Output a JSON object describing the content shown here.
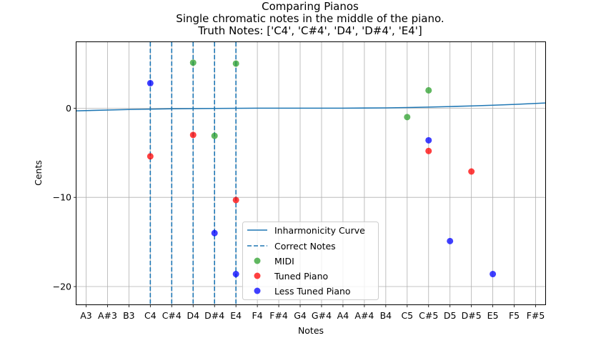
{
  "chart_data": {
    "type": "scatter",
    "title_lines": [
      "Comparing Pianos",
      "Single chromatic notes in the middle of the piano.",
      "Truth Notes: ['C4', 'C#4', 'D4', 'D#4', 'E4']"
    ],
    "xlabel": "Notes",
    "ylabel": "Cents",
    "categories": [
      "A3",
      "A#3",
      "B3",
      "C4",
      "C#4",
      "D4",
      "D#4",
      "E4",
      "F4",
      "F#4",
      "G4",
      "G#4",
      "A4",
      "A#4",
      "B4",
      "C5",
      "C#5",
      "D5",
      "D#5",
      "E5",
      "F5",
      "F#5"
    ],
    "x_range": [
      -0.45,
      21.45
    ],
    "ylim": [
      -22,
      7.4
    ],
    "y_ticks": [
      -20,
      -10,
      0
    ],
    "y_tick_labels": [
      "−20",
      "−10",
      "0"
    ],
    "grid": true,
    "legend_position": "lower-center",
    "correct_notes": [
      "C4",
      "C#4",
      "D4",
      "D#4",
      "E4"
    ],
    "inharmonicity_curve": {
      "name": "Inharmonicity Curve",
      "color": "#1f77b4",
      "x": [
        -0.45,
        2,
        4,
        6,
        8,
        10,
        12,
        14,
        15,
        16,
        17,
        18,
        19,
        20,
        21.45
      ],
      "y": [
        -0.3,
        -0.15,
        -0.07,
        -0.03,
        0.0,
        0.0,
        0.0,
        0.03,
        0.07,
        0.12,
        0.18,
        0.25,
        0.33,
        0.42,
        0.58
      ]
    },
    "series": [
      {
        "name": "MIDI",
        "color": "#2ca02c",
        "points": [
          {
            "note": "D4",
            "cents": 5.1
          },
          {
            "note": "D#4",
            "cents": -3.1
          },
          {
            "note": "E4",
            "cents": 5.0
          },
          {
            "note": "C5",
            "cents": -1.0
          },
          {
            "note": "C#5",
            "cents": 2.0
          }
        ]
      },
      {
        "name": "Tuned Piano",
        "color": "#ff0000",
        "points": [
          {
            "note": "C4",
            "cents": -5.4
          },
          {
            "note": "D4",
            "cents": -3.0
          },
          {
            "note": "E4",
            "cents": -10.3
          },
          {
            "note": "C#5",
            "cents": -4.8
          },
          {
            "note": "D#5",
            "cents": -7.1
          }
        ]
      },
      {
        "name": "Less Tuned Piano",
        "color": "#0000ff",
        "points": [
          {
            "note": "C4",
            "cents": 2.8
          },
          {
            "note": "D#4",
            "cents": -14.0
          },
          {
            "note": "E4",
            "cents": -18.6
          },
          {
            "note": "C#5",
            "cents": -3.6
          },
          {
            "note": "D5",
            "cents": -14.9
          },
          {
            "note": "E5",
            "cents": -18.6
          }
        ]
      }
    ],
    "legend": {
      "curve_label": "Inharmonicity Curve",
      "correct_label": "Correct Notes",
      "midi_label": "MIDI",
      "tuned_label": "Tuned Piano",
      "less_tuned_label": "Less Tuned Piano"
    }
  }
}
